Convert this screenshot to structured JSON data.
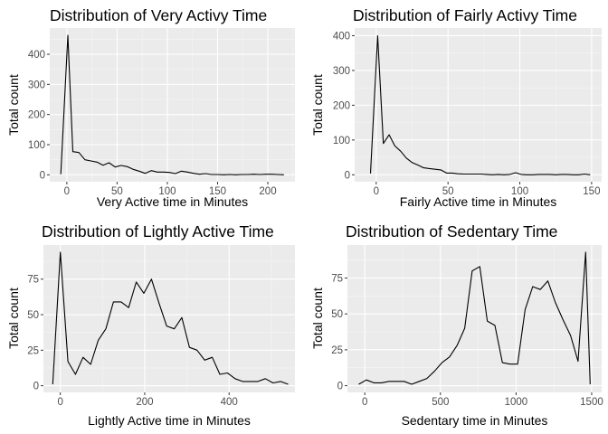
{
  "chart_data": [
    {
      "type": "line",
      "title": "Distribution of Very Activy Time",
      "xlabel": "Very Active time in Minutes",
      "ylabel": "Total count",
      "xlim": [
        -17,
        227
      ],
      "ylim": [
        -23,
        487
      ],
      "xticks": [
        0,
        50,
        100,
        150,
        200
      ],
      "yticks": [
        0,
        100,
        200,
        300,
        400
      ],
      "grid": true,
      "series": [
        {
          "x": [
            -6,
            1,
            6,
            12,
            18,
            24,
            30,
            36,
            42,
            48,
            54,
            60,
            66,
            72,
            78,
            84,
            90,
            96,
            102,
            108,
            114,
            120,
            126,
            132,
            138,
            144,
            150,
            156,
            162,
            168,
            174,
            180,
            186,
            192,
            198,
            204,
            210,
            216
          ],
          "y": [
            2,
            463,
            77,
            74,
            50,
            46,
            42,
            32,
            40,
            26,
            31,
            27,
            18,
            12,
            5,
            14,
            9,
            9,
            8,
            4,
            12,
            9,
            5,
            2,
            4,
            1,
            1,
            0,
            1,
            0,
            1,
            1,
            2,
            1,
            2,
            2,
            1,
            0
          ]
        }
      ]
    },
    {
      "type": "line",
      "title": "Distribution of Fairly Activy Time",
      "xlabel": "Fairly Active time in Minutes",
      "ylabel": "Total count",
      "xlim": [
        -15,
        157
      ],
      "ylim": [
        -20,
        422
      ],
      "xticks": [
        0,
        50,
        100,
        150
      ],
      "yticks": [
        0,
        100,
        200,
        300,
        400
      ],
      "grid": true,
      "series": [
        {
          "x": [
            -4,
            1,
            5,
            9,
            13,
            17,
            21,
            25,
            29,
            33,
            37,
            41,
            45,
            49,
            53,
            57,
            61,
            65,
            69,
            73,
            77,
            81,
            85,
            89,
            93,
            97,
            101,
            105,
            109,
            113,
            117,
            121,
            125,
            129,
            133,
            137,
            141,
            145,
            149
          ],
          "y": [
            4,
            400,
            90,
            115,
            83,
            68,
            48,
            35,
            28,
            20,
            18,
            16,
            14,
            5,
            5,
            3,
            2,
            2,
            2,
            2,
            1,
            0,
            1,
            0,
            1,
            6,
            1,
            0,
            0,
            1,
            1,
            1,
            0,
            1,
            1,
            0,
            0,
            2,
            0
          ]
        }
      ]
    },
    {
      "type": "line",
      "title": "Distribution of Lightly Active Time",
      "xlabel": "Lightly Active time in Minutes",
      "ylabel": "Total count",
      "xlim": [
        -40,
        556
      ],
      "ylim": [
        -4.7,
        99
      ],
      "xticks": [
        0,
        200,
        400
      ],
      "yticks": [
        0,
        25,
        50,
        75
      ],
      "grid": true,
      "series": [
        {
          "x": [
            -18,
            0,
            18,
            36,
            54,
            72,
            90,
            108,
            126,
            144,
            162,
            180,
            198,
            216,
            234,
            252,
            270,
            288,
            306,
            324,
            342,
            360,
            378,
            396,
            414,
            432,
            450,
            468,
            486,
            504,
            522,
            540
          ],
          "y": [
            1,
            94,
            17,
            8,
            20,
            15,
            32,
            40,
            59,
            59,
            55,
            73,
            65,
            75,
            58,
            42,
            40,
            48,
            27,
            25,
            18,
            20,
            8,
            9,
            5,
            3,
            3,
            3,
            5,
            2,
            3,
            1
          ]
        }
      ]
    },
    {
      "type": "line",
      "title": "Distribution of Sedentary Time",
      "xlabel": "Sedentary time in Minutes",
      "ylabel": "Total count",
      "xlim": [
        -115,
        1566
      ],
      "ylim": [
        -4.7,
        98
      ],
      "xticks": [
        0,
        500,
        1000,
        1500
      ],
      "yticks": [
        0,
        25,
        50,
        75
      ],
      "grid": true,
      "series": [
        {
          "x": [
            -40,
            10,
            60,
            110,
            160,
            210,
            260,
            310,
            360,
            410,
            460,
            510,
            560,
            610,
            660,
            710,
            760,
            810,
            860,
            910,
            960,
            1010,
            1060,
            1110,
            1160,
            1210,
            1260,
            1310,
            1360,
            1410,
            1460,
            1490
          ],
          "y": [
            1,
            4,
            2,
            2,
            3,
            3,
            3,
            1,
            3,
            5,
            10,
            16,
            20,
            28,
            40,
            80,
            83,
            45,
            42,
            16,
            15,
            15,
            53,
            69,
            67,
            73,
            58,
            46,
            35,
            17,
            93,
            1
          ]
        }
      ]
    }
  ]
}
